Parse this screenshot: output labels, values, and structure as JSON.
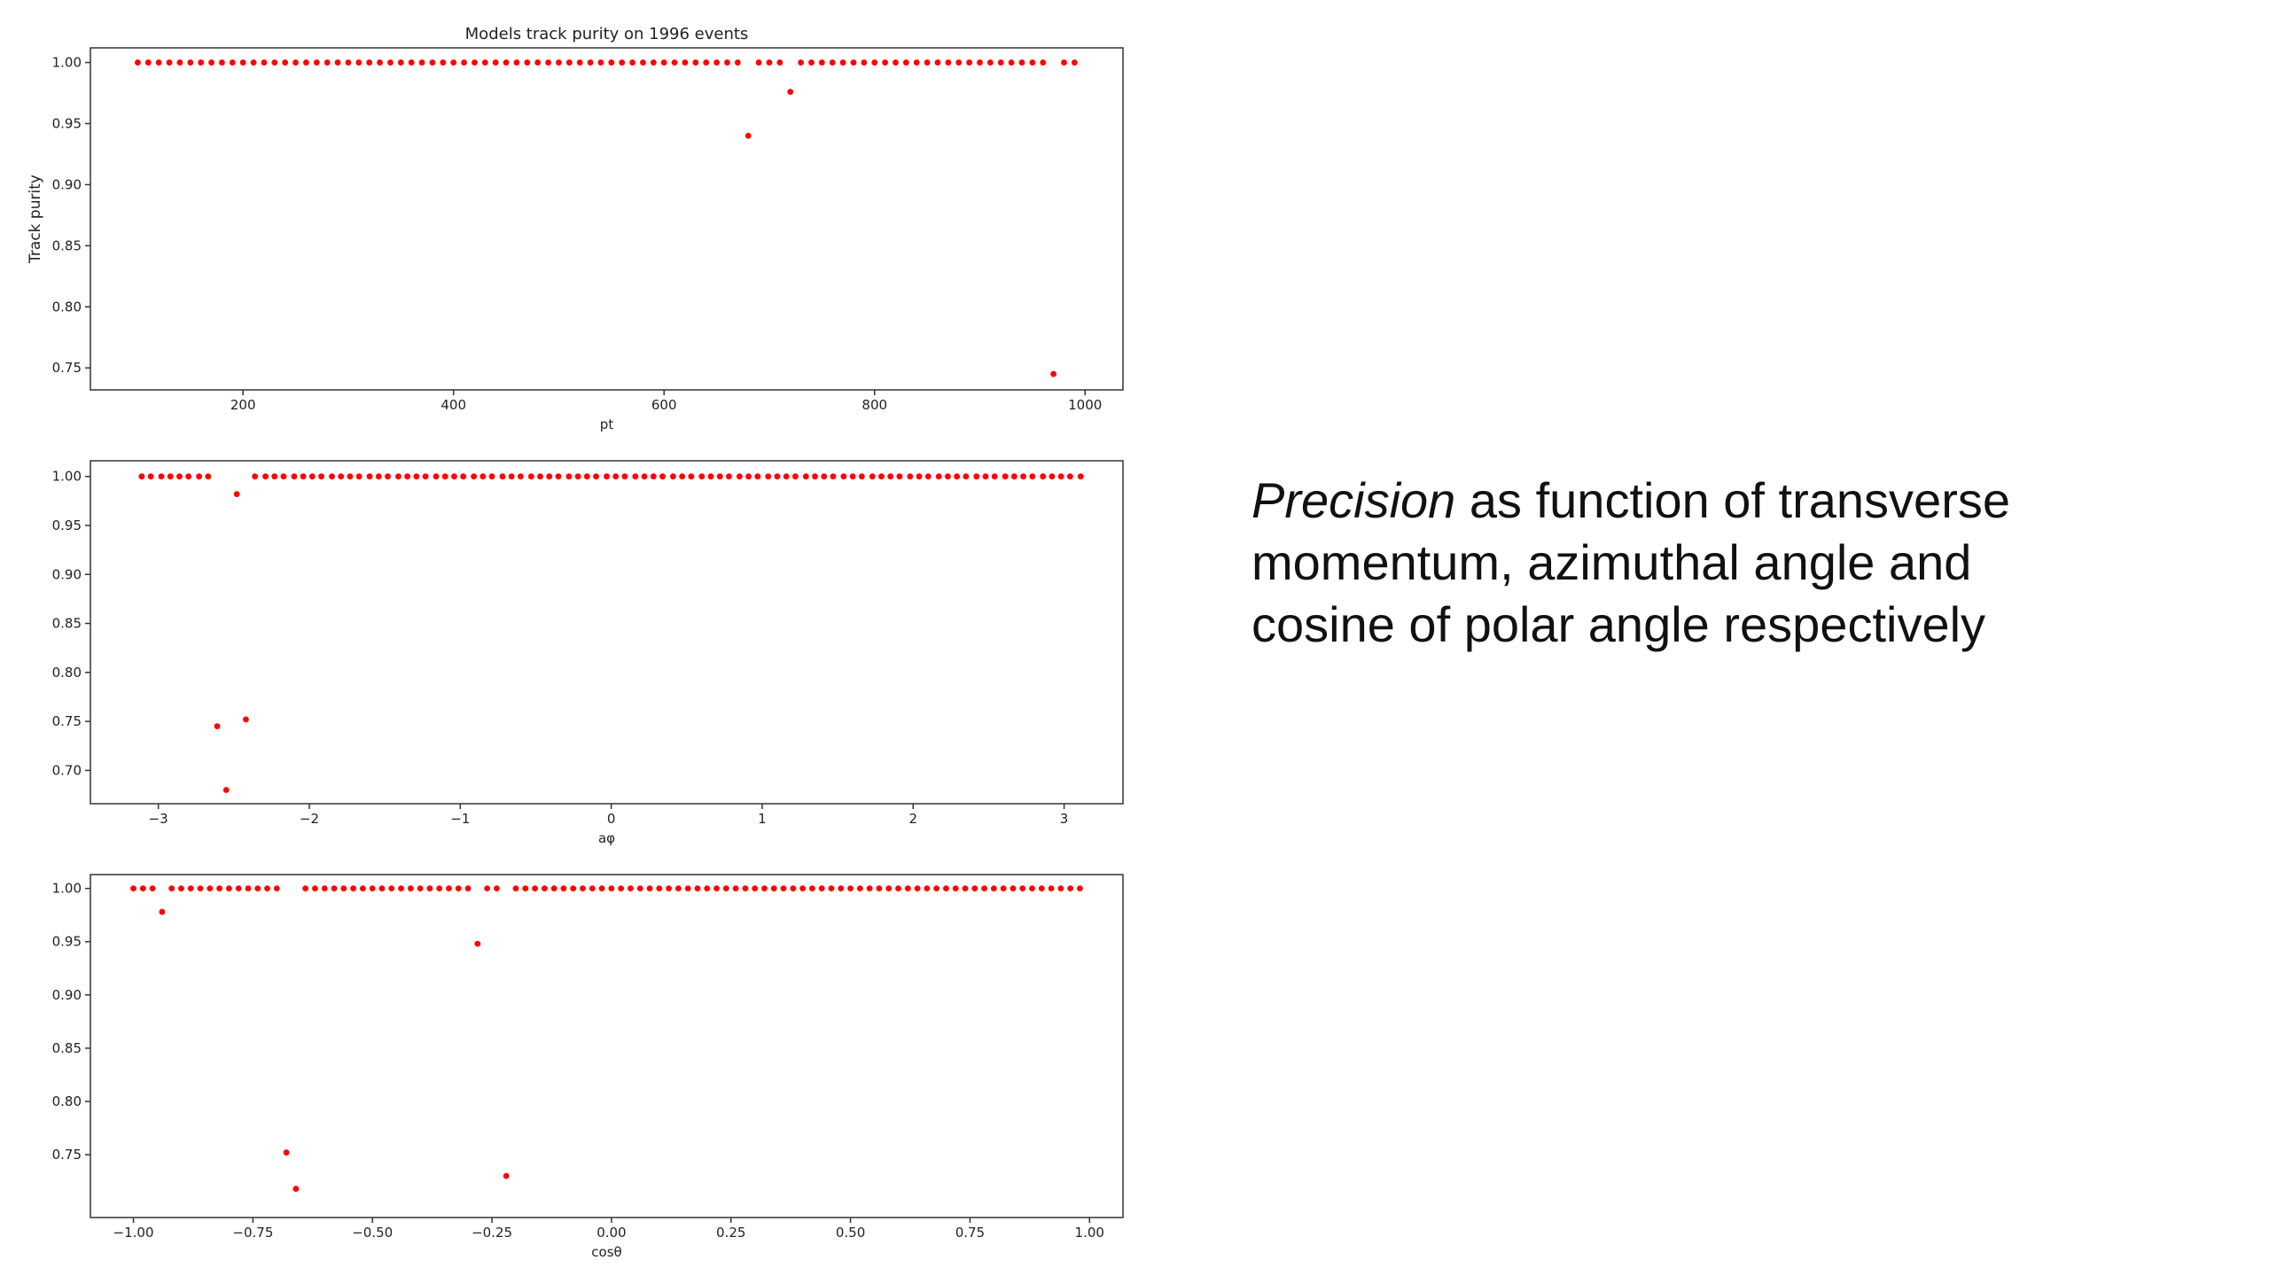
{
  "slide": {
    "text_emphasis": "Precision",
    "text_rest": " as function of transverse momentum, azimuthal angle and cosine of polar angle respectively"
  },
  "chart_data": [
    {
      "type": "scatter",
      "title": "Models track purity on 1996 events",
      "x_label": "pt",
      "y_label": "Track purity",
      "color": "red",
      "x": [
        100,
        110,
        120,
        130,
        140,
        150,
        160,
        170,
        180,
        190,
        200,
        210,
        220,
        230,
        240,
        250,
        260,
        270,
        280,
        290,
        300,
        310,
        320,
        330,
        340,
        350,
        360,
        370,
        380,
        390,
        400,
        410,
        420,
        430,
        440,
        450,
        460,
        470,
        480,
        490,
        500,
        510,
        520,
        530,
        540,
        550,
        560,
        570,
        580,
        590,
        600,
        610,
        620,
        630,
        640,
        650,
        660,
        670,
        680,
        690,
        700,
        710,
        720,
        730,
        740,
        750,
        760,
        770,
        780,
        790,
        800,
        810,
        820,
        830,
        840,
        850,
        860,
        870,
        880,
        890,
        900,
        910,
        920,
        930,
        940,
        950,
        960,
        970,
        980,
        990
      ],
      "values": [
        1,
        1,
        1,
        1,
        1,
        1,
        1,
        1,
        1,
        1,
        1,
        1,
        1,
        1,
        1,
        1,
        1,
        1,
        1,
        1,
        1,
        1,
        1,
        1,
        1,
        1,
        1,
        1,
        1,
        1,
        1,
        1,
        1,
        1,
        1,
        1,
        1,
        1,
        1,
        1,
        1,
        1,
        1,
        1,
        1,
        1,
        1,
        1,
        1,
        1,
        1,
        1,
        1,
        1,
        1,
        1,
        1,
        1,
        0.94,
        1,
        1,
        1,
        0.976,
        1,
        1,
        1,
        1,
        1,
        1,
        1,
        1,
        1,
        1,
        1,
        1,
        1,
        1,
        1,
        1,
        1,
        1,
        1,
        1,
        1,
        1,
        1,
        1,
        0.745,
        1,
        1
      ],
      "xlim": [
        55,
        1036
      ],
      "ylim": [
        0.732,
        1.012
      ],
      "xticks": [
        200,
        400,
        600,
        800,
        1000
      ],
      "yticks": [
        0.75,
        {
          "value": 0.8,
          "label": "0.80"
        },
        0.85,
        {
          "value": 0.9,
          "label": "0.90"
        },
        0.95,
        {
          "value": 1,
          "label": "1.00"
        }
      ]
    },
    {
      "type": "scatter",
      "x_label": "aφ",
      "color": "red",
      "x": [
        -3.11,
        -3.05,
        -2.98,
        -2.92,
        -2.86,
        -2.8,
        -2.73,
        -2.67,
        -2.61,
        -2.55,
        -2.48,
        -2.42,
        -2.36,
        -2.29,
        -2.23,
        -2.17,
        -2.1,
        -2.04,
        -1.98,
        -1.92,
        -1.85,
        -1.79,
        -1.73,
        -1.67,
        -1.6,
        -1.54,
        -1.48,
        -1.41,
        -1.35,
        -1.29,
        -1.23,
        -1.16,
        -1.1,
        -1.04,
        -0.98,
        -0.91,
        -0.85,
        -0.79,
        -0.72,
        -0.66,
        -0.6,
        -0.53,
        -0.47,
        -0.41,
        -0.35,
        -0.28,
        -0.22,
        -0.16,
        -0.1,
        -0.03,
        0.03,
        0.09,
        0.16,
        0.22,
        0.28,
        0.34,
        0.41,
        0.47,
        0.53,
        0.6,
        0.66,
        0.72,
        0.78,
        0.85,
        0.91,
        0.97,
        1.04,
        1.1,
        1.16,
        1.22,
        1.29,
        1.35,
        1.41,
        1.47,
        1.54,
        1.6,
        1.66,
        1.73,
        1.79,
        1.85,
        1.91,
        1.98,
        2.04,
        2.1,
        2.17,
        2.23,
        2.29,
        2.35,
        2.42,
        2.48,
        2.54,
        2.61,
        2.67,
        2.73,
        2.79,
        2.86,
        2.92,
        2.98,
        3.04,
        3.11
      ],
      "values": [
        1,
        1,
        1,
        1,
        1,
        1,
        1,
        1,
        0.745,
        0.68,
        0.982,
        0.752,
        1,
        1,
        1,
        1,
        1,
        1,
        1,
        1,
        1,
        1,
        1,
        1,
        1,
        1,
        1,
        1,
        1,
        1,
        1,
        1,
        1,
        1,
        1,
        1,
        1,
        1,
        1,
        1,
        1,
        1,
        1,
        1,
        1,
        1,
        1,
        1,
        1,
        1,
        1,
        1,
        1,
        1,
        1,
        1,
        1,
        1,
        1,
        1,
        1,
        1,
        1,
        1,
        1,
        1,
        1,
        1,
        1,
        1,
        1,
        1,
        1,
        1,
        1,
        1,
        1,
        1,
        1,
        1,
        1,
        1,
        1,
        1,
        1,
        1,
        1,
        1,
        1,
        1,
        1,
        1,
        1,
        1,
        1,
        1,
        1,
        1,
        1,
        1
      ],
      "xlim": [
        -3.45,
        3.39
      ],
      "ylim": [
        0.666,
        1.016
      ],
      "xticks": [
        {
          "value": -3,
          "label": "−3"
        },
        {
          "value": -2,
          "label": "−2"
        },
        {
          "value": -1,
          "label": "−1"
        },
        0,
        1,
        2,
        3
      ],
      "yticks": [
        {
          "value": 0.7,
          "label": "0.70"
        },
        0.75,
        {
          "value": 0.8,
          "label": "0.80"
        },
        0.85,
        {
          "value": 0.9,
          "label": "0.90"
        },
        0.95,
        {
          "value": 1,
          "label": "1.00"
        }
      ]
    },
    {
      "type": "scatter",
      "x_label": "cosθ",
      "color": "red",
      "x": [
        -1,
        -0.98,
        -0.96,
        -0.94,
        -0.92,
        -0.9,
        -0.88,
        -0.86,
        -0.84,
        -0.82,
        -0.8,
        -0.78,
        -0.76,
        -0.74,
        -0.72,
        -0.7,
        -0.68,
        -0.66,
        -0.64,
        -0.62,
        -0.6,
        -0.58,
        -0.56,
        -0.54,
        -0.52,
        -0.5,
        -0.48,
        -0.46,
        -0.44,
        -0.42,
        -0.4,
        -0.38,
        -0.36,
        -0.34,
        -0.32,
        -0.3,
        -0.28,
        -0.26,
        -0.24,
        -0.22,
        -0.2,
        -0.18,
        -0.16,
        -0.14,
        -0.12,
        -0.1,
        -0.08,
        -0.06,
        -0.04,
        -0.02,
        0,
        0.02,
        0.04,
        0.06,
        0.08,
        0.1,
        0.12,
        0.14,
        0.16,
        0.18,
        0.2,
        0.22,
        0.24,
        0.26,
        0.28,
        0.3,
        0.32,
        0.34,
        0.36,
        0.38,
        0.4,
        0.42,
        0.44,
        0.46,
        0.48,
        0.5,
        0.52,
        0.54,
        0.56,
        0.58,
        0.6,
        0.62,
        0.64,
        0.66,
        0.68,
        0.7,
        0.72,
        0.74,
        0.76,
        0.78,
        0.8,
        0.82,
        0.84,
        0.86,
        0.88,
        0.9,
        0.92,
        0.94,
        0.96,
        0.98
      ],
      "values": [
        1,
        1,
        1,
        0.978,
        1,
        1,
        1,
        1,
        1,
        1,
        1,
        1,
        1,
        1,
        1,
        1,
        0.752,
        0.718,
        1,
        1,
        1,
        1,
        1,
        1,
        1,
        1,
        1,
        1,
        1,
        1,
        1,
        1,
        1,
        1,
        1,
        1,
        0.948,
        1,
        1,
        0.73,
        1,
        1,
        1,
        1,
        1,
        1,
        1,
        1,
        1,
        1,
        1,
        1,
        1,
        1,
        1,
        1,
        1,
        1,
        1,
        1,
        1,
        1,
        1,
        1,
        1,
        1,
        1,
        1,
        1,
        1,
        1,
        1,
        1,
        1,
        1,
        1,
        1,
        1,
        1,
        1,
        1,
        1,
        1,
        1,
        1,
        1,
        1,
        1,
        1,
        1,
        1,
        1,
        1,
        1,
        1,
        1,
        1,
        1,
        1,
        1
      ],
      "xlim": [
        -1.09,
        1.07
      ],
      "ylim": [
        0.691,
        1.013
      ],
      "xticks": [
        {
          "value": -1,
          "label": "−1.00"
        },
        {
          "value": -0.75,
          "label": "−0.75"
        },
        {
          "value": -0.5,
          "label": "−0.50"
        },
        {
          "value": -0.25,
          "label": "−0.25"
        },
        {
          "value": 0,
          "label": "0.00"
        },
        0.25,
        {
          "value": 0.5,
          "label": "0.50"
        },
        0.75,
        {
          "value": 1,
          "label": "1.00"
        }
      ],
      "yticks": [
        0.75,
        {
          "value": 0.8,
          "label": "0.80"
        },
        0.85,
        {
          "value": 0.9,
          "label": "0.90"
        },
        0.95,
        {
          "value": 1,
          "label": "1.00"
        }
      ]
    }
  ]
}
